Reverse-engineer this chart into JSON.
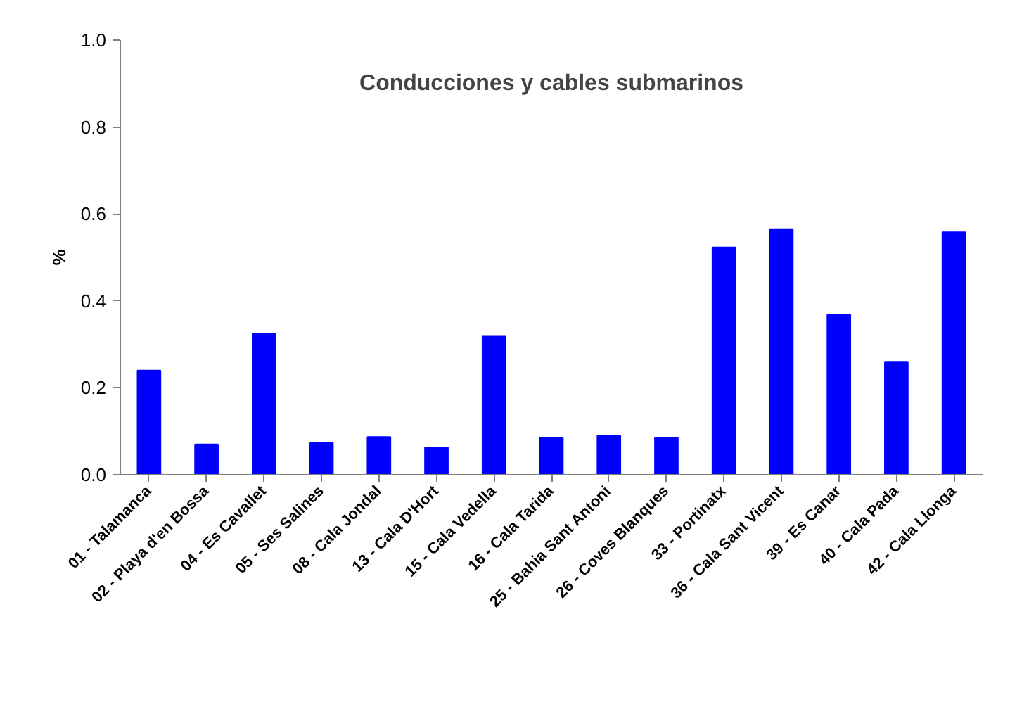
{
  "chart_data": {
    "type": "bar",
    "title": "Conducciones y cables submarinos",
    "ylabel": "%",
    "categories": [
      "01 - Talamanca",
      "02 - Playa d'en Bossa",
      "04 - Es Cavallet",
      "05 - Ses Salines",
      "08 - Cala Jondal",
      "13 - Cala D'Hort",
      "15 - Cala Vedella",
      "16 - Cala Tarida",
      "25 - Bahia Sant Antoni",
      "26 - Coves Blanques",
      "33 - Portinatx",
      "36 - Cala Sant Vicent",
      "39 - Es Canar",
      "40 - Cala Pada",
      "42 - Cala Llonga"
    ],
    "values": [
      0.24,
      0.07,
      0.325,
      0.073,
      0.087,
      0.063,
      0.318,
      0.085,
      0.09,
      0.085,
      0.523,
      0.565,
      0.368,
      0.26,
      0.558
    ],
    "color": "#0000ff",
    "ylim": [
      0,
      1
    ],
    "yticks": [
      {
        "value": 0,
        "label": "0.0"
      },
      {
        "value": 0.2,
        "label": "0.2"
      },
      {
        "value": 0.4,
        "label": "0.4"
      },
      {
        "value": 0.6,
        "label": "0.6"
      },
      {
        "value": 0.8,
        "label": "0.8"
      },
      {
        "value": 1,
        "label": "1.0"
      }
    ],
    "grid": false
  }
}
